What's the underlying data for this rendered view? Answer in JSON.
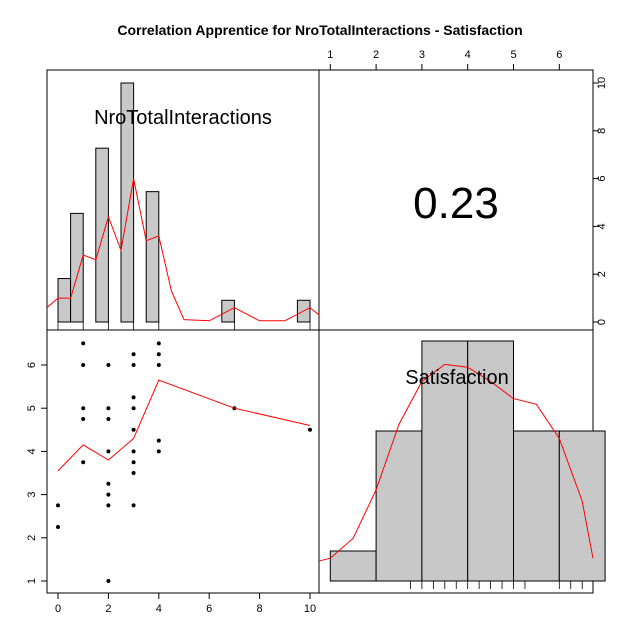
{
  "chart_data": {
    "type": "scatter",
    "title": "Correlation Apprentice for NroTotalInteractions - Satisfaction",
    "variables": [
      "NroTotalInteractions",
      "Satisfaction"
    ],
    "correlation": "0.23",
    "hist_nro": {
      "bins": [
        [
          0,
          0.5
        ],
        [
          0.5,
          1
        ],
        [
          1.5,
          2
        ],
        [
          2.5,
          3
        ],
        [
          3.5,
          4
        ],
        [
          6.5,
          7
        ],
        [
          9.5,
          10
        ]
      ],
      "counts": [
        2,
        5,
        8,
        11,
        6,
        1,
        1
      ],
      "density_curve": [
        [
          -0.5,
          0.6
        ],
        [
          0,
          1.0
        ],
        [
          0.5,
          1.0
        ],
        [
          1,
          2.8
        ],
        [
          1.5,
          2.6
        ],
        [
          2,
          4.4
        ],
        [
          2.5,
          3.0
        ],
        [
          3,
          6.0
        ],
        [
          3.5,
          3.4
        ],
        [
          4,
          3.6
        ],
        [
          4.5,
          1.3
        ],
        [
          5,
          0.1
        ],
        [
          6,
          0.05
        ],
        [
          7,
          0.6
        ],
        [
          8,
          0.05
        ],
        [
          9,
          0.05
        ],
        [
          10,
          0.6
        ],
        [
          10.5,
          0.3
        ]
      ]
    },
    "hist_sat": {
      "bins": [
        [
          1,
          2
        ],
        [
          2,
          3
        ],
        [
          3,
          4
        ],
        [
          4,
          5
        ],
        [
          5,
          6
        ],
        [
          6,
          7
        ]
      ],
      "counts": [
        1,
        5,
        8,
        8,
        5,
        5
      ],
      "density_curve": [
        [
          0.75,
          0.7
        ],
        [
          1,
          0.8
        ],
        [
          1.5,
          1.5
        ],
        [
          2,
          3.2
        ],
        [
          2.5,
          5.5
        ],
        [
          3,
          7.0
        ],
        [
          3.5,
          7.6
        ],
        [
          4,
          7.5
        ],
        [
          4.5,
          7.0
        ],
        [
          5,
          6.4
        ],
        [
          5.5,
          6.2
        ],
        [
          6,
          5.0
        ],
        [
          6.5,
          2.8
        ],
        [
          7,
          0.8
        ]
      ],
      "rug": [
        2.75,
        3.0,
        3.25,
        3.5,
        3.75,
        4.0,
        4.25,
        4.5,
        4.75,
        5.0,
        5.25,
        6.0,
        6.25,
        6.5
      ]
    },
    "scatter_points": [
      [
        0,
        2.25
      ],
      [
        0,
        2.75
      ],
      [
        1,
        6.5
      ],
      [
        1,
        6.0
      ],
      [
        1,
        5.0
      ],
      [
        1,
        4.75
      ],
      [
        1,
        3.75
      ],
      [
        2,
        6.0
      ],
      [
        2,
        5.0
      ],
      [
        2,
        4.75
      ],
      [
        2,
        4.0
      ],
      [
        2,
        3.25
      ],
      [
        2,
        3.0
      ],
      [
        2,
        2.75
      ],
      [
        2,
        1.0
      ],
      [
        3,
        6.25
      ],
      [
        3,
        6.0
      ],
      [
        3,
        5.25
      ],
      [
        3,
        5.0
      ],
      [
        3,
        4.5
      ],
      [
        3,
        4.0
      ],
      [
        3,
        3.75
      ],
      [
        3,
        3.5
      ],
      [
        3,
        2.75
      ],
      [
        4,
        6.5
      ],
      [
        4,
        6.25
      ],
      [
        4,
        6.0
      ],
      [
        4,
        4.25
      ],
      [
        4,
        4.0
      ],
      [
        7,
        5.0
      ],
      [
        10,
        4.5
      ]
    ],
    "loess_line": [
      [
        0,
        3.55
      ],
      [
        1,
        4.15
      ],
      [
        2,
        3.8
      ],
      [
        3,
        4.3
      ],
      [
        4,
        5.65
      ],
      [
        7,
        5.0
      ],
      [
        10,
        4.6
      ]
    ],
    "top_axis_ticks": [
      1,
      2,
      3,
      4,
      5,
      6
    ],
    "right_axis_ticks": [
      0,
      2,
      4,
      6,
      8,
      10
    ],
    "left_axis_ticks": [
      1,
      2,
      3,
      4,
      5,
      6
    ],
    "bottom_axis_ticks": [
      0,
      2,
      4,
      6,
      8,
      10
    ],
    "colors": {
      "curve": "#ff0000",
      "bar_fill": "#c8c8c8",
      "frame": "#000000",
      "point": "#000000"
    }
  }
}
